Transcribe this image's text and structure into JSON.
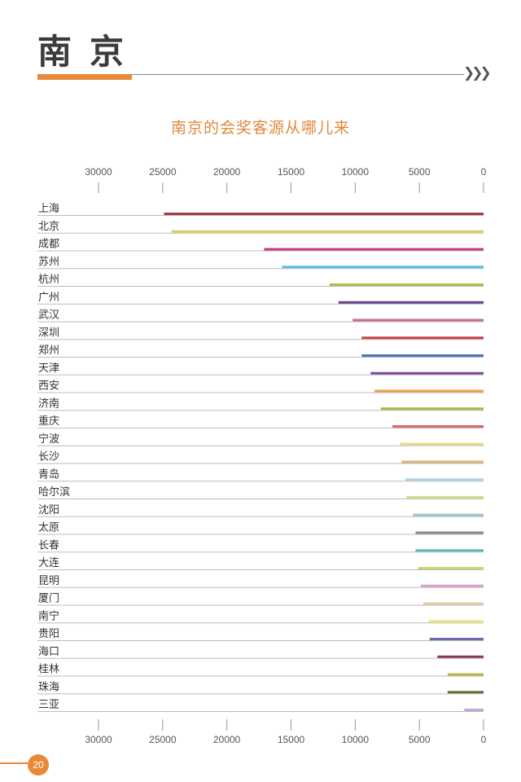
{
  "page": {
    "title": "南京",
    "chevrons": "❯❯❯",
    "page_number": "20"
  },
  "chart_data": {
    "type": "bar",
    "orientation": "horizontal",
    "title": "南京的会奖客源从哪儿来",
    "xaxis": {
      "reversed": true,
      "xlim": [
        0,
        30000
      ],
      "ticks": [
        30000,
        25000,
        20000,
        15000,
        10000,
        5000,
        0
      ],
      "position": "top-and-bottom"
    },
    "categories": [
      "上海",
      "北京",
      "成都",
      "苏州",
      "杭州",
      "广州",
      "武汉",
      "深圳",
      "郑州",
      "天津",
      "西安",
      "济南",
      "重庆",
      "宁波",
      "长沙",
      "青岛",
      "哈尔滨",
      "沈阳",
      "太原",
      "长春",
      "大连",
      "昆明",
      "厦门",
      "南宁",
      "贵阳",
      "海口",
      "桂林",
      "珠海",
      "三亚"
    ],
    "values": [
      24900,
      24300,
      17100,
      15700,
      12000,
      11300,
      10200,
      9500,
      9500,
      8800,
      8500,
      8000,
      7100,
      6500,
      6400,
      6100,
      6000,
      5500,
      5300,
      5300,
      5100,
      4900,
      4700,
      4300,
      4200,
      3600,
      2800,
      2800,
      1500
    ],
    "colors": [
      "#a83a44",
      "#d9cf5e",
      "#c73a86",
      "#5bbde6",
      "#a3c24a",
      "#6b3e8a",
      "#c96b9a",
      "#c6404a",
      "#4a78b8",
      "#7a4a98",
      "#e8a24a",
      "#9fba4a",
      "#d96a6a",
      "#e6d88a",
      "#e0b27a",
      "#a9d4e6",
      "#d6dc8e",
      "#9ac4c8",
      "#8a8a8a",
      "#5abab8",
      "#c2d86a",
      "#d8a0c8",
      "#e6cca8",
      "#f0e48a",
      "#6a6aa8",
      "#8a3a4a",
      "#b8b848",
      "#6a6a3a",
      "#c0a8d8"
    ],
    "grid": false,
    "legend": "none"
  }
}
